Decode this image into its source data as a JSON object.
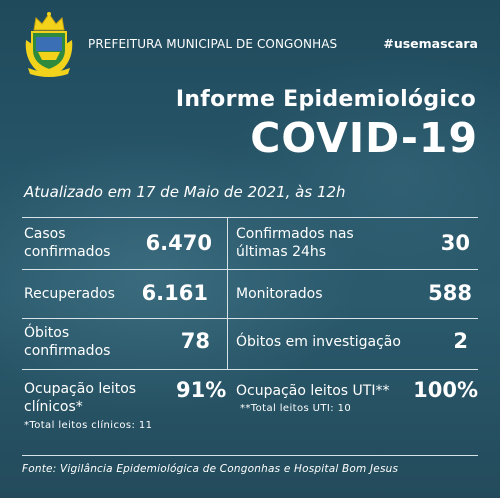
{
  "header": {
    "org": "PREFEITURA MUNICIPAL DE CONGONHAS",
    "hashtag": "#usemascara",
    "crest_icon": "municipal-crest-icon"
  },
  "title": {
    "line1": "Informe Epidemiológico",
    "line2": "COVID-19"
  },
  "updated": "Atualizado em 17 de Maio de 2021, às 12h",
  "stats": {
    "confirmed_label": "Casos\nconfirmados",
    "confirmed_value": "6.470",
    "confirmed24_label": "Confirmados nas\núltimas 24hs",
    "confirmed24_value": "30",
    "recovered_label": "Recuperados",
    "recovered_value": "6.161",
    "monitored_label": "Monitorados",
    "monitored_value": "588",
    "deaths_label": "Óbitos\nconfirmados",
    "deaths_value": "78",
    "deaths_inv_label": "Óbitos em investigação",
    "deaths_inv_value": "2"
  },
  "occupancy": {
    "clinical_label": "Ocupação leitos\nclínicos*",
    "clinical_value": "91%",
    "clinical_note": "*Total leitos clínicos: 11",
    "icu_label": "Ocupação leitos UTI**",
    "icu_value": "100%",
    "icu_note": "**Total leitos UTI: 10"
  },
  "source": "Fonte: Vigilância Epidemiológica de Congonhas e Hospital Bom Jesus",
  "colors": {
    "background": "#275568",
    "crest_yellow": "#f2d21b",
    "crest_green": "#2e8b3e",
    "text": "#ffffff"
  }
}
